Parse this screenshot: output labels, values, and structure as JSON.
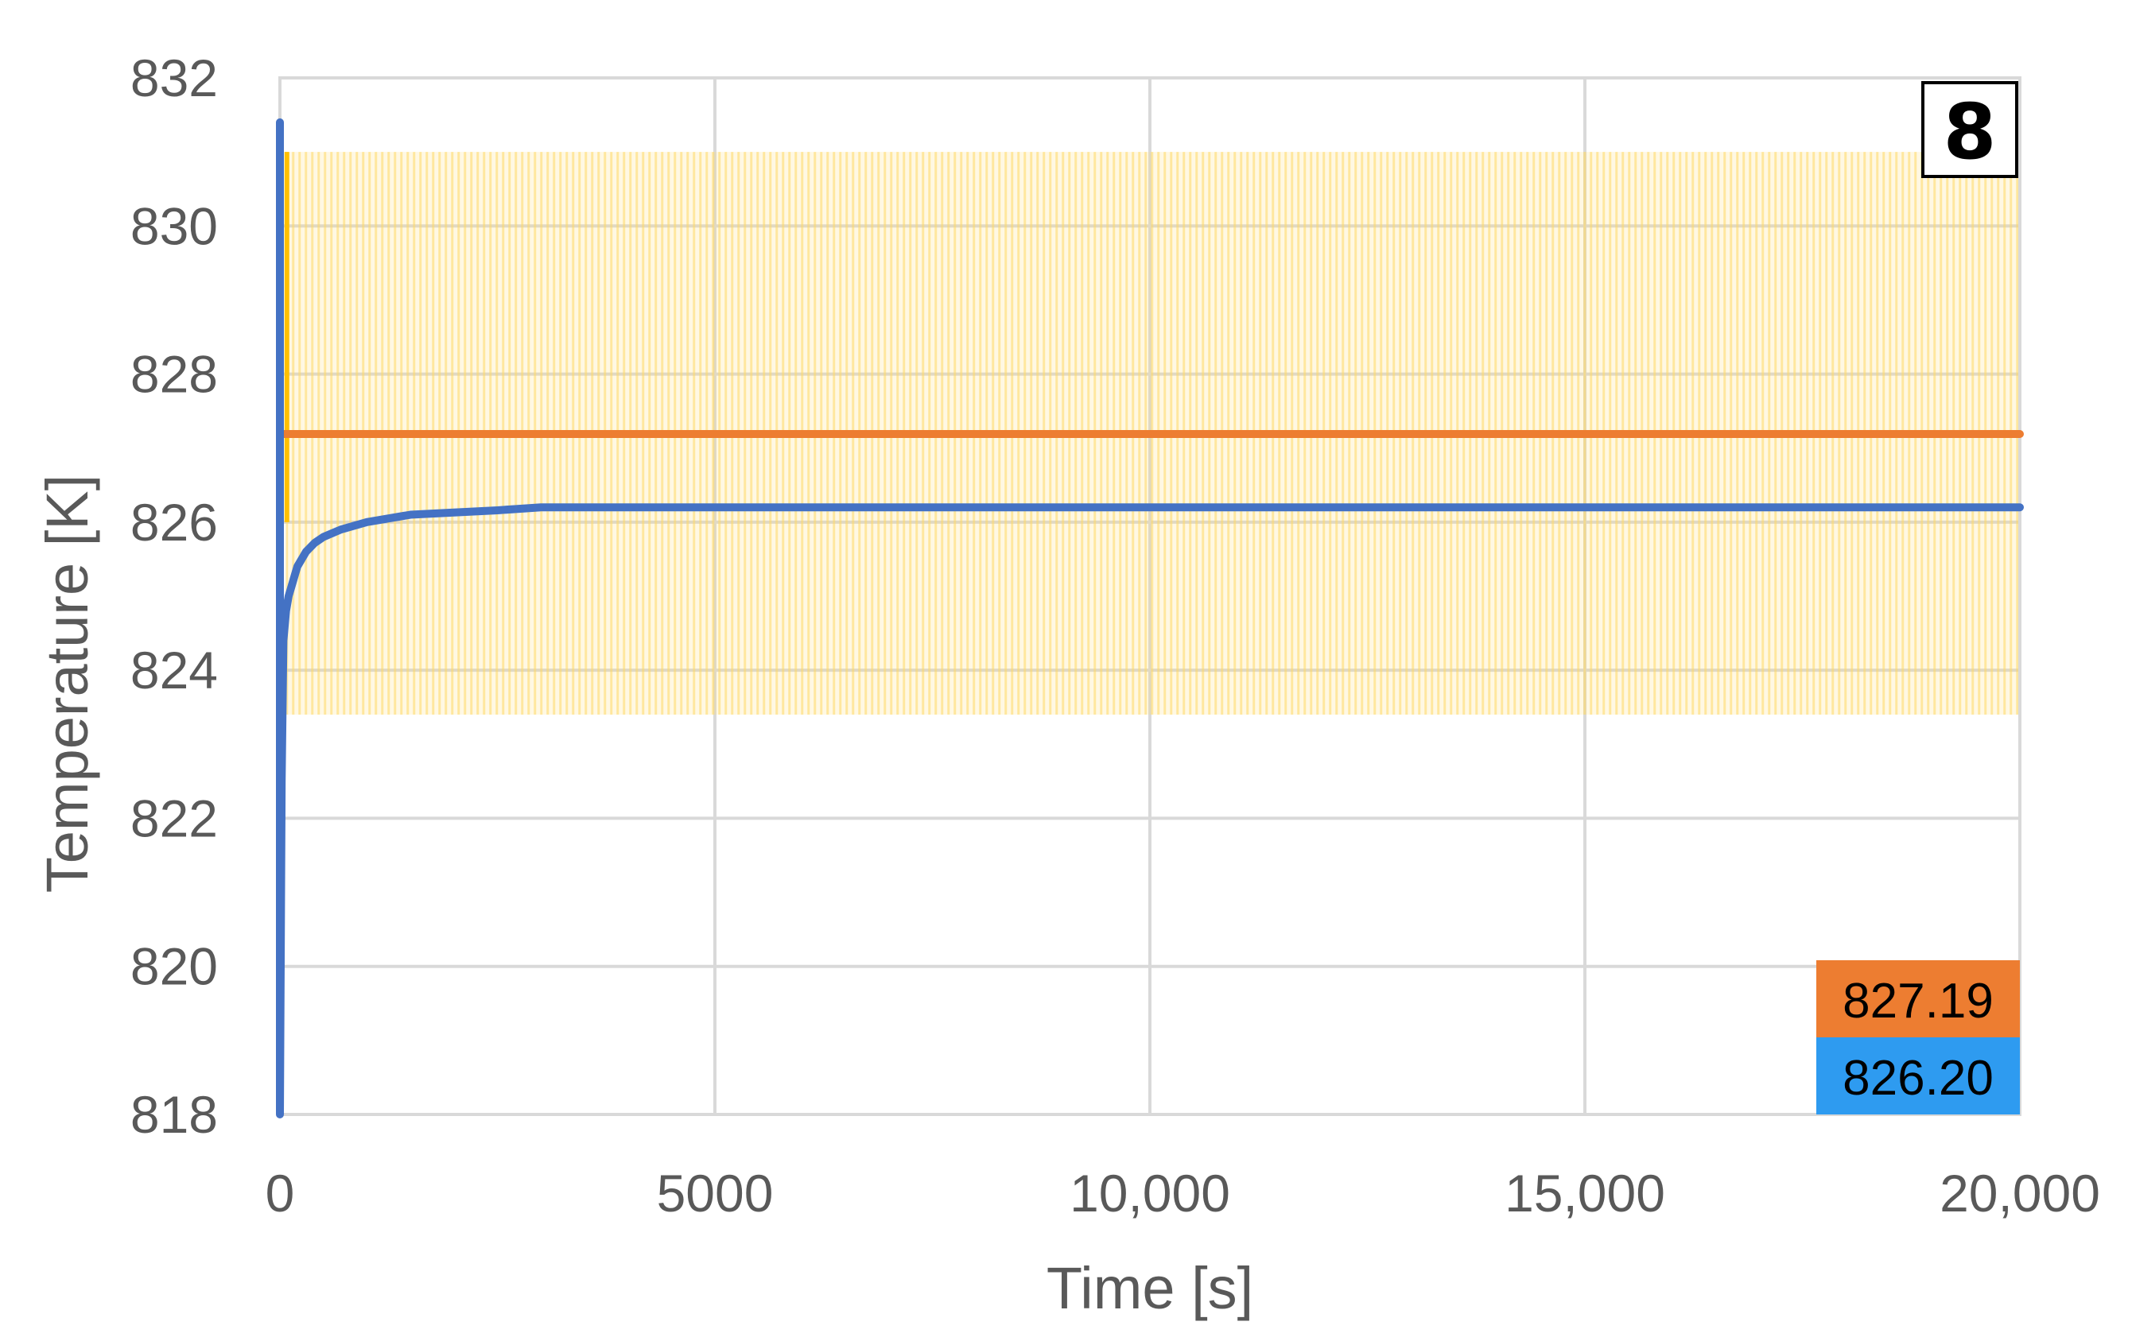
{
  "chart_data": {
    "type": "line",
    "title": "",
    "xlabel": "Time [s]",
    "ylabel": "Temperature [K]",
    "xlim": [
      0,
      20000
    ],
    "ylim": [
      818,
      832
    ],
    "x_ticks": [
      {
        "value": 0,
        "label": "0"
      },
      {
        "value": 5000,
        "label": "5000"
      },
      {
        "value": 10000,
        "label": "10,000"
      },
      {
        "value": 15000,
        "label": "15,000"
      },
      {
        "value": 20000,
        "label": "20,000"
      }
    ],
    "y_ticks": [
      {
        "value": 818,
        "label": "818"
      },
      {
        "value": 820,
        "label": "820"
      },
      {
        "value": 822,
        "label": "822"
      },
      {
        "value": 824,
        "label": "824"
      },
      {
        "value": 826,
        "label": "826"
      },
      {
        "value": 828,
        "label": "828"
      },
      {
        "value": 830,
        "label": "830"
      },
      {
        "value": 832,
        "label": "832"
      }
    ],
    "grid": true,
    "panel_label": "8",
    "band": {
      "x": [
        80,
        20000
      ],
      "y": [
        823.4,
        831.0
      ],
      "color": "#ffd966"
    },
    "band_edge": {
      "x": 80,
      "y": [
        826.0,
        831.0
      ],
      "color": "#ffc000"
    },
    "series": [
      {
        "color": "#ed7d31",
        "x": [
          0,
          20000
        ],
        "y": [
          827.19,
          827.19
        ]
      },
      {
        "color": "#4472c4",
        "x": [
          0,
          0,
          20,
          40,
          70,
          100,
          150,
          200,
          300,
          400,
          500,
          700,
          1000,
          1500,
          2000,
          2500,
          3000,
          5000,
          10000,
          15000,
          20000
        ],
        "y": [
          831.4,
          818.0,
          822.5,
          824.4,
          824.8,
          825.0,
          825.2,
          825.4,
          825.6,
          825.72,
          825.8,
          825.9,
          826.0,
          826.1,
          826.13,
          826.16,
          826.2,
          826.2,
          826.2,
          826.2,
          826.2
        ]
      }
    ],
    "value_boxes": [
      {
        "text": "827.19",
        "color": "#ed7d31"
      },
      {
        "text": "826.20",
        "color": "#2e9bf0"
      }
    ]
  }
}
